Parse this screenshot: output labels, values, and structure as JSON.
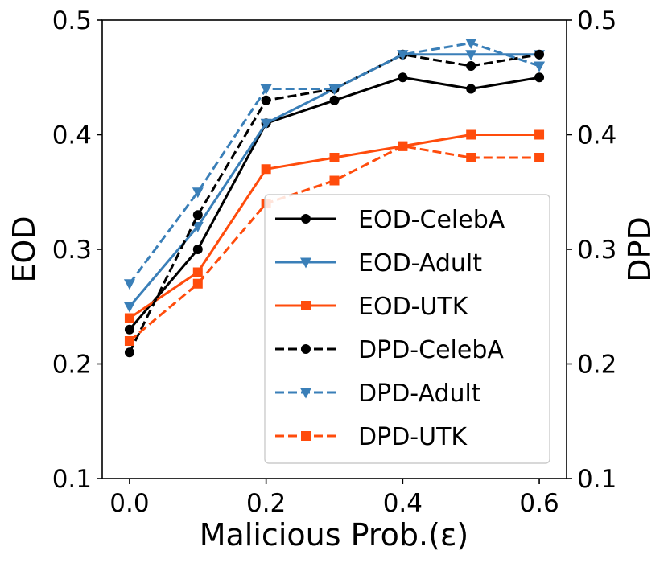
{
  "chart_data": {
    "type": "line",
    "title": "",
    "xlabel": "Malicious Prob.(ε)",
    "ylabel_left": "EOD",
    "ylabel_right": "DPD",
    "x": [
      0.0,
      0.1,
      0.2,
      0.3,
      0.4,
      0.5,
      0.6
    ],
    "xlim": [
      -0.04,
      0.64
    ],
    "ylim_left": [
      0.1,
      0.5
    ],
    "ylim_right": [
      0.1,
      0.5
    ],
    "xticks": [
      "0.0",
      "0.2",
      "0.4",
      "0.6"
    ],
    "yticks_left": [
      "0.1",
      "0.2",
      "0.3",
      "0.4",
      "0.5"
    ],
    "yticks_right": [
      "0.1",
      "0.2",
      "0.3",
      "0.4",
      "0.5"
    ],
    "grid": false,
    "legend_position": "lower-right",
    "series": [
      {
        "name": "EOD-CelebA",
        "axis": "left",
        "color": "#000000",
        "linestyle": "solid",
        "marker": "circle",
        "values": [
          0.23,
          0.3,
          0.41,
          0.43,
          0.45,
          0.44,
          0.45
        ]
      },
      {
        "name": "EOD-Adult",
        "axis": "left",
        "color": "#3a7fb8",
        "linestyle": "solid",
        "marker": "triangle-down",
        "values": [
          0.25,
          0.32,
          0.41,
          0.44,
          0.47,
          0.47,
          0.47
        ]
      },
      {
        "name": "EOD-UTK",
        "axis": "left",
        "color": "#ff4c0c",
        "linestyle": "solid",
        "marker": "square",
        "values": [
          0.24,
          0.28,
          0.37,
          0.38,
          0.39,
          0.4,
          0.4
        ]
      },
      {
        "name": "DPD-CelebA",
        "axis": "right",
        "color": "#000000",
        "linestyle": "dashed",
        "marker": "circle",
        "values": [
          0.21,
          0.33,
          0.43,
          0.44,
          0.47,
          0.46,
          0.47
        ]
      },
      {
        "name": "DPD-Adult",
        "axis": "right",
        "color": "#3a7fb8",
        "linestyle": "dashed",
        "marker": "triangle-down",
        "values": [
          0.27,
          0.35,
          0.44,
          0.44,
          0.47,
          0.48,
          0.46
        ]
      },
      {
        "name": "DPD-UTK",
        "axis": "right",
        "color": "#ff4c0c",
        "linestyle": "dashed",
        "marker": "square",
        "values": [
          0.22,
          0.27,
          0.34,
          0.36,
          0.39,
          0.38,
          0.38
        ]
      }
    ]
  }
}
